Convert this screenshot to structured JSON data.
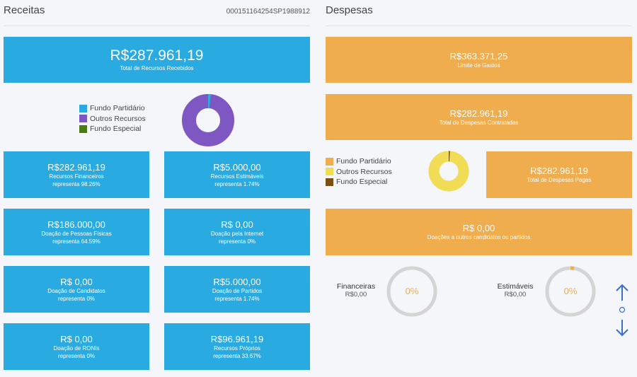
{
  "receitas": {
    "title": "Receitas",
    "code": "000151164254SP1988912",
    "total": {
      "value": "R$287.961,19",
      "label": "Total de Recursos Recebidos"
    },
    "legend": [
      {
        "label": "Fundo Partidário",
        "color": "#29abe2"
      },
      {
        "label": "Outros Recursos",
        "color": "#7e57c2"
      },
      {
        "label": "Fundo Especial",
        "color": "#4a7a12"
      }
    ],
    "donut": {
      "fundo_partidario": 0.0174,
      "outros_recursos": 0.9826,
      "fundo_especial": 0
    },
    "cards": [
      {
        "value": "R$282.961,19",
        "label": "Recursos Financeiros",
        "share": "representa 98.26%"
      },
      {
        "value": "R$5.000,00",
        "label": "Recursos Estimáveis",
        "share": "representa 1.74%"
      },
      {
        "value": "R$186.000,00",
        "label": "Doação de Pessoas Físicas",
        "share": "representa 64.59%"
      },
      {
        "value": "R$ 0,00",
        "label": "Doação pela Internet",
        "share": "representa 0%"
      },
      {
        "value": "R$ 0,00",
        "label": "Doação de Candidatos",
        "share": "representa 0%"
      },
      {
        "value": "R$5.000,00",
        "label": "Doação de Partidos",
        "share": "representa 1.74%"
      },
      {
        "value": "R$ 0,00",
        "label": "Doação de RONIs",
        "share": "representa 0%"
      },
      {
        "value": "R$96.961,19",
        "label": "Recursos Próprios",
        "share": "representa 33.67%"
      }
    ]
  },
  "despesas": {
    "title": "Despesas",
    "limite": {
      "value": "R$363.371,25",
      "label": "Limite de Gastos"
    },
    "contratadas": {
      "value": "R$282.961,19",
      "label": "Total de Despesas Contratadas"
    },
    "pagas": {
      "value": "R$282.961,19",
      "label": "Total de Despesas Pagas"
    },
    "doacoes": {
      "value": "R$ 0,00",
      "label": "Doações a outros candidatos ou partidos"
    },
    "legend": [
      {
        "label": "Fundo Partidário",
        "color": "#f0ad4e"
      },
      {
        "label": "Outros Recursos",
        "color": "#f0dc55"
      },
      {
        "label": "Fundo Especial",
        "color": "#7a4f14"
      }
    ],
    "donut": {
      "fundo_partidario": 0,
      "outros_recursos": 0.99,
      "fundo_especial": 0.01
    },
    "gauges": [
      {
        "label": "Financeiras",
        "value": "R$0,00",
        "percent_text": "0%",
        "percent": 0
      },
      {
        "label": "Estimáveis",
        "value": "R$0,00",
        "percent_text": "0%",
        "percent": 0
      }
    ]
  },
  "nav": {
    "up_icon": "arrow-up-icon",
    "dot_icon": "circle-icon",
    "down_icon": "arrow-down-icon"
  }
}
